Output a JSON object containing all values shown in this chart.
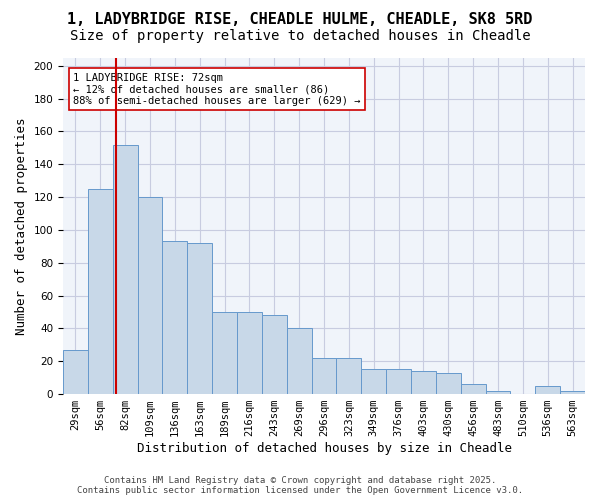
{
  "title1": "1, LADYBRIDGE RISE, CHEADLE HULME, CHEADLE, SK8 5RD",
  "title2": "Size of property relative to detached houses in Cheadle",
  "xlabel": "Distribution of detached houses by size in Cheadle",
  "ylabel": "Number of detached properties",
  "bins": [
    "29sqm",
    "56sqm",
    "82sqm",
    "109sqm",
    "136sqm",
    "163sqm",
    "189sqm",
    "216sqm",
    "243sqm",
    "269sqm",
    "296sqm",
    "323sqm",
    "349sqm",
    "376sqm",
    "403sqm",
    "430sqm",
    "456sqm",
    "483sqm",
    "510sqm",
    "536sqm",
    "563sqm"
  ],
  "values": [
    27,
    125,
    152,
    120,
    93,
    92,
    50,
    50,
    48,
    40,
    22,
    22,
    15,
    15,
    14,
    13,
    6,
    2,
    0,
    5,
    2
  ],
  "bar_color": "#c8d8e8",
  "bar_edge_color": "#6699cc",
  "vline_color": "#cc0000",
  "annotation_text": "1 LADYBRIDGE RISE: 72sqm\n← 12% of detached houses are smaller (86)\n88% of semi-detached houses are larger (629) →",
  "annotation_box_color": "#ffffff",
  "annotation_box_edge_color": "#cc0000",
  "footer1": "Contains HM Land Registry data © Crown copyright and database right 2025.",
  "footer2": "Contains public sector information licensed under the Open Government Licence v3.0.",
  "ylim": [
    0,
    205
  ],
  "yticks": [
    0,
    20,
    40,
    60,
    80,
    100,
    120,
    140,
    160,
    180,
    200
  ],
  "bg_color": "#f0f4fa",
  "grid_color": "#c8cce0",
  "title_fontsize": 11,
  "subtitle_fontsize": 10,
  "axis_label_fontsize": 9,
  "tick_fontsize": 7.5,
  "annot_fontsize": 7.5,
  "footer_fontsize": 6.5
}
